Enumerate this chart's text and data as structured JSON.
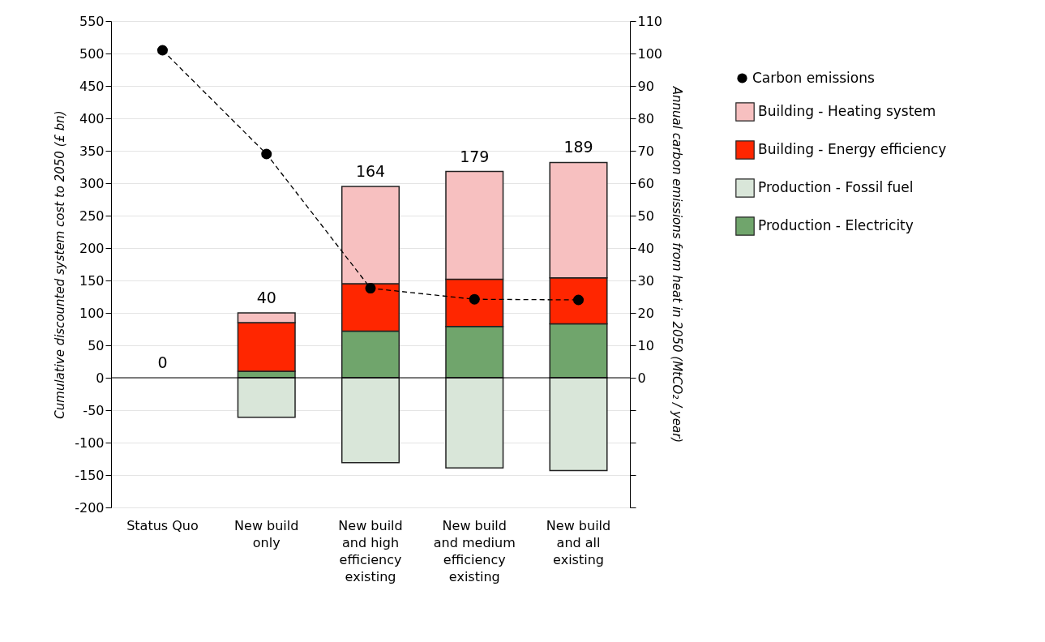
{
  "chart_data": {
    "type": "bar",
    "stacked": true,
    "categories": [
      "Status Quo",
      "New build only",
      "New build and high efficiency existing",
      "New build and medium efficiency existing",
      "New build and all existing"
    ],
    "ylabel": "Cumulative discounted system cost to 2050 (£ bn)",
    "y2label": "Annual carbon emissions from heat in 2050 (MtCO₂ / year)",
    "ylim": [
      -200,
      550
    ],
    "yticks": [
      -200,
      -150,
      -100,
      -50,
      0,
      50,
      100,
      150,
      200,
      250,
      300,
      350,
      400,
      450,
      500,
      550
    ],
    "y2lim": [
      -40,
      110
    ],
    "y2ticks": [
      {
        "value": -40,
        "label": null
      },
      {
        "value": -30,
        "label": null
      },
      {
        "value": -20,
        "label": null
      },
      {
        "value": -10,
        "label": null
      },
      0,
      10,
      20,
      30,
      40,
      50,
      60,
      70,
      80,
      90,
      100,
      110
    ],
    "grid": "y",
    "legend": "right",
    "series": [
      {
        "name": "Production - Electricity",
        "color": "#70a56c",
        "values": [
          0,
          10,
          72,
          79,
          83
        ]
      },
      {
        "name": "Production - Fossil fuel",
        "color": "#d9e6d9",
        "values": [
          0,
          -61,
          -131,
          -139,
          -143
        ]
      },
      {
        "name": "Building - Energy efficiency",
        "color": "#ff2600",
        "values": [
          0,
          75,
          73,
          73,
          71
        ]
      },
      {
        "name": "Building - Heating system",
        "color": "#f7c0c0",
        "values": [
          0,
          15,
          150,
          166,
          178
        ]
      },
      {
        "name": "Carbon emissions",
        "type": "line",
        "axis": "y2",
        "color": "#000000",
        "marker": "circle",
        "line_style": "dashed",
        "values": [
          101,
          69,
          27.6,
          24.2,
          24
        ]
      }
    ],
    "totals": [
      "0",
      "40",
      "164",
      "179",
      "189"
    ]
  }
}
